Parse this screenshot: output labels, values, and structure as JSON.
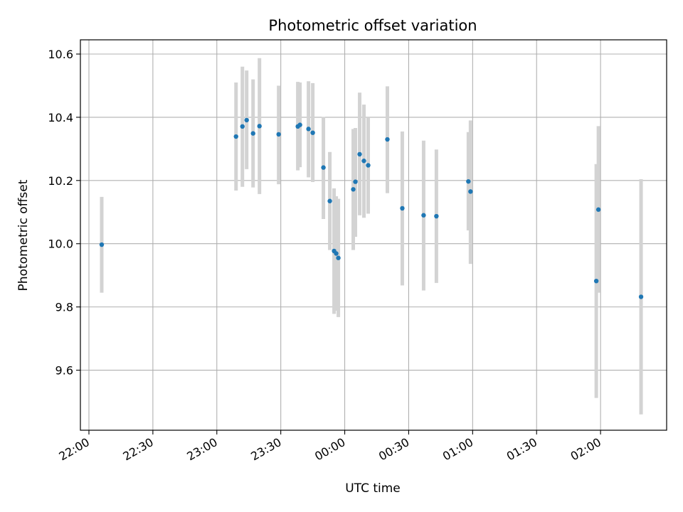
{
  "chart_data": {
    "type": "scatter",
    "title": "Photometric offset variation",
    "xlabel": "UTC time",
    "ylabel": "Photometric offset",
    "x_type": "time",
    "xlim": [
      "21:56",
      "02:31"
    ],
    "ylim": [
      9.41,
      10.645
    ],
    "x_ticks": [
      "22:00",
      "22:30",
      "23:00",
      "23:30",
      "00:00",
      "00:30",
      "01:00",
      "01:30",
      "02:00"
    ],
    "y_ticks": [
      9.6,
      9.8,
      10.0,
      10.2,
      10.4,
      10.6
    ],
    "y_tick_labels": [
      "9.6",
      "9.8",
      "10.0",
      "10.2",
      "10.4",
      "10.6"
    ],
    "grid": true,
    "marker_color": "#1f77b4",
    "errorbar_color": "#d3d3d3",
    "points": [
      {
        "t": "22:06",
        "y": 9.997,
        "lo": 9.845,
        "hi": 10.148
      },
      {
        "t": "23:09",
        "y": 10.339,
        "lo": 10.168,
        "hi": 10.51
      },
      {
        "t": "23:12",
        "y": 10.371,
        "lo": 10.18,
        "hi": 10.56
      },
      {
        "t": "23:14",
        "y": 10.391,
        "lo": 10.236,
        "hi": 10.548
      },
      {
        "t": "23:17",
        "y": 10.349,
        "lo": 10.178,
        "hi": 10.52
      },
      {
        "t": "23:20",
        "y": 10.372,
        "lo": 10.157,
        "hi": 10.587
      },
      {
        "t": "23:29",
        "y": 10.346,
        "lo": 10.188,
        "hi": 10.5
      },
      {
        "t": "23:38",
        "y": 10.371,
        "lo": 10.232,
        "hi": 10.512
      },
      {
        "t": "23:39",
        "y": 10.376,
        "lo": 10.242,
        "hi": 10.51
      },
      {
        "t": "23:43",
        "y": 10.363,
        "lo": 10.21,
        "hi": 10.514
      },
      {
        "t": "23:45",
        "y": 10.351,
        "lo": 10.195,
        "hi": 10.508
      },
      {
        "t": "23:50",
        "y": 10.241,
        "lo": 10.078,
        "hi": 10.401
      },
      {
        "t": "23:53",
        "y": 10.135,
        "lo": 9.98,
        "hi": 10.29
      },
      {
        "t": "23:55",
        "y": 9.977,
        "lo": 9.778,
        "hi": 10.175
      },
      {
        "t": "23:56",
        "y": 9.969,
        "lo": 9.788,
        "hi": 10.15
      },
      {
        "t": "23:57",
        "y": 9.955,
        "lo": 9.768,
        "hi": 10.142
      },
      {
        "t": "00:04",
        "y": 10.172,
        "lo": 9.98,
        "hi": 10.363
      },
      {
        "t": "00:05",
        "y": 10.196,
        "lo": 10.022,
        "hi": 10.366
      },
      {
        "t": "00:07",
        "y": 10.283,
        "lo": 10.09,
        "hi": 10.478
      },
      {
        "t": "00:09",
        "y": 10.262,
        "lo": 10.082,
        "hi": 10.44
      },
      {
        "t": "00:11",
        "y": 10.248,
        "lo": 10.095,
        "hi": 10.4
      },
      {
        "t": "00:20",
        "y": 10.33,
        "lo": 10.16,
        "hi": 10.498
      },
      {
        "t": "00:27",
        "y": 10.112,
        "lo": 9.868,
        "hi": 10.355
      },
      {
        "t": "00:37",
        "y": 10.09,
        "lo": 9.852,
        "hi": 10.326
      },
      {
        "t": "00:43",
        "y": 10.087,
        "lo": 9.876,
        "hi": 10.298
      },
      {
        "t": "00:58",
        "y": 10.197,
        "lo": 10.042,
        "hi": 10.353
      },
      {
        "t": "00:59",
        "y": 10.165,
        "lo": 9.936,
        "hi": 10.39
      },
      {
        "t": "01:58",
        "y": 9.882,
        "lo": 9.512,
        "hi": 10.252
      },
      {
        "t": "01:59",
        "y": 10.108,
        "lo": 9.845,
        "hi": 10.372
      },
      {
        "t": "02:19",
        "y": 9.832,
        "lo": 9.46,
        "hi": 10.204
      }
    ]
  }
}
